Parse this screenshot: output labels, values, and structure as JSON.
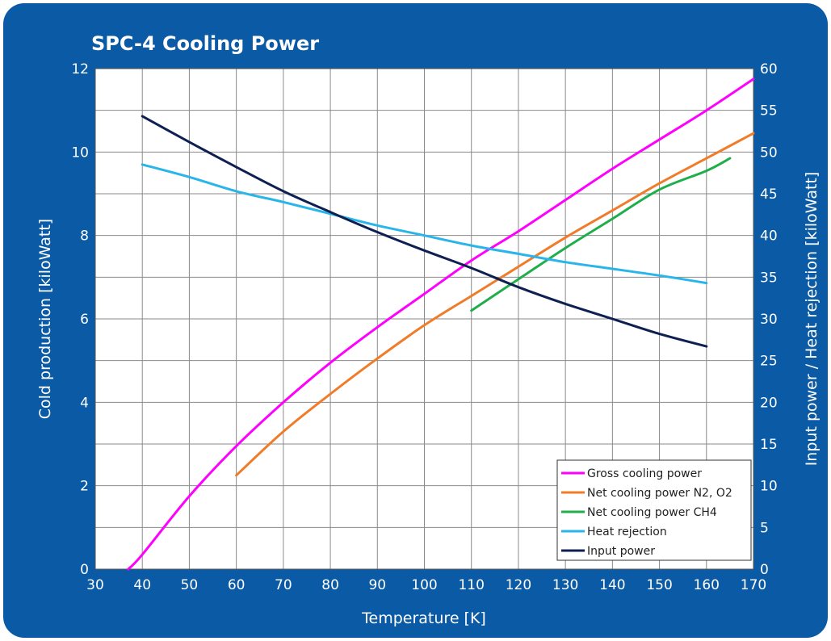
{
  "chart_data": {
    "type": "line",
    "title": "SPC-4 Cooling Power",
    "xlabel": "Temperature [K]",
    "ylabel": "Cold production [kiloWatt]",
    "y2label": "Input power / Heat rejection [kiloWatt]",
    "xlim": [
      30,
      170
    ],
    "ylim": [
      0,
      12
    ],
    "y2lim": [
      0,
      60
    ],
    "xticks": [
      30,
      40,
      50,
      60,
      70,
      80,
      90,
      100,
      110,
      120,
      130,
      140,
      150,
      160,
      170
    ],
    "yticks": [
      0,
      2,
      4,
      6,
      8,
      10,
      12
    ],
    "y2ticks": [
      0,
      5,
      10,
      15,
      20,
      25,
      30,
      35,
      40,
      45,
      50,
      55,
      60
    ],
    "grid": true,
    "legend_position": "bottom-right",
    "series": [
      {
        "name": "Gross cooling power",
        "axis": "left",
        "color": "#ff00ff",
        "x": [
          37,
          40,
          50,
          60,
          70,
          80,
          90,
          100,
          110,
          120,
          130,
          140,
          150,
          160,
          170
        ],
        "y": [
          0,
          0.35,
          1.75,
          2.95,
          4.0,
          4.95,
          5.8,
          6.6,
          7.4,
          8.1,
          8.85,
          9.6,
          10.3,
          11.0,
          11.75
        ]
      },
      {
        "name": "Net cooling power N2, O2",
        "axis": "left",
        "color": "#f07c2a",
        "x": [
          60,
          70,
          80,
          90,
          100,
          110,
          120,
          130,
          140,
          150,
          160,
          170
        ],
        "y": [
          2.25,
          3.3,
          4.2,
          5.05,
          5.85,
          6.55,
          7.25,
          7.95,
          8.6,
          9.25,
          9.85,
          10.45
        ]
      },
      {
        "name": "Net cooling power CH4",
        "axis": "left",
        "color": "#1fae4a",
        "x": [
          110,
          120,
          130,
          140,
          150,
          160,
          165
        ],
        "y": [
          6.2,
          6.95,
          7.7,
          8.4,
          9.1,
          9.55,
          9.85
        ]
      },
      {
        "name": "Heat rejection",
        "axis": "right",
        "color": "#29b5ea",
        "x": [
          40,
          50,
          60,
          70,
          80,
          90,
          100,
          110,
          120,
          130,
          140,
          150,
          160
        ],
        "y": [
          48.5,
          47.0,
          45.3,
          44.0,
          42.6,
          41.2,
          40.0,
          38.8,
          37.8,
          36.8,
          36.0,
          35.2,
          34.3
        ]
      },
      {
        "name": "Input power",
        "axis": "right",
        "color": "#0e1f52",
        "x": [
          40,
          50,
          60,
          70,
          80,
          90,
          100,
          110,
          120,
          130,
          140,
          150,
          160
        ],
        "y": [
          54.3,
          51.2,
          48.2,
          45.3,
          42.8,
          40.4,
          38.2,
          36.1,
          33.8,
          31.8,
          30.0,
          28.2,
          26.7
        ]
      }
    ]
  }
}
